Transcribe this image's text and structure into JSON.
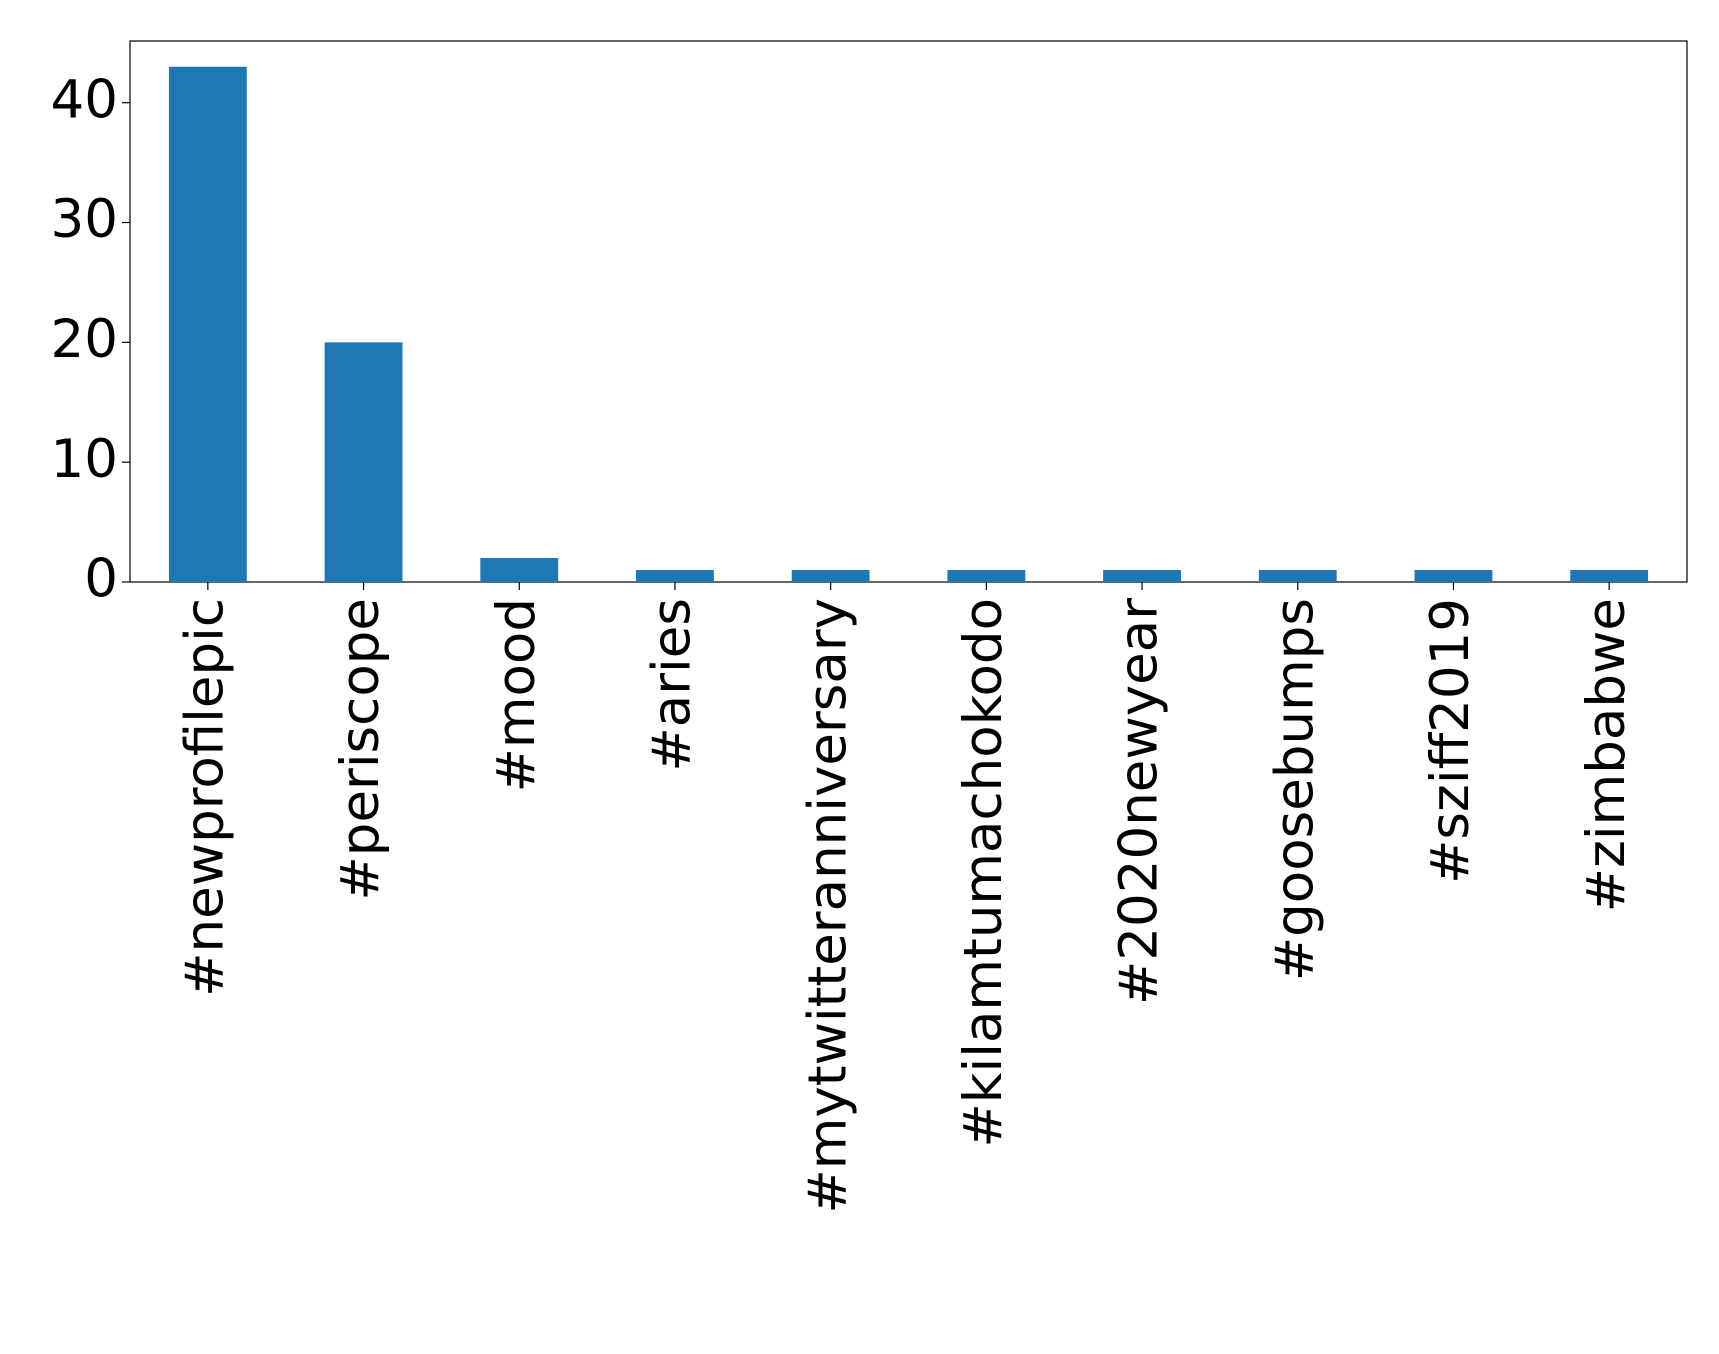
{
  "chart_data": {
    "type": "bar",
    "categories": [
      "#newprofilepic",
      "#periscope",
      "#mood",
      "#aries",
      "#mytwitteranniversary",
      "#kilamtumachokodo",
      "#2020newyear",
      "#goosebumps",
      "#sziff2019",
      "#zimbabwe"
    ],
    "values": [
      43,
      20,
      2,
      1,
      1,
      1,
      1,
      1,
      1,
      1
    ],
    "color": "#1f77b4",
    "ylim": [
      0,
      45.15
    ],
    "yticks": [
      0,
      10,
      20,
      30,
      40
    ],
    "grid": false
  }
}
